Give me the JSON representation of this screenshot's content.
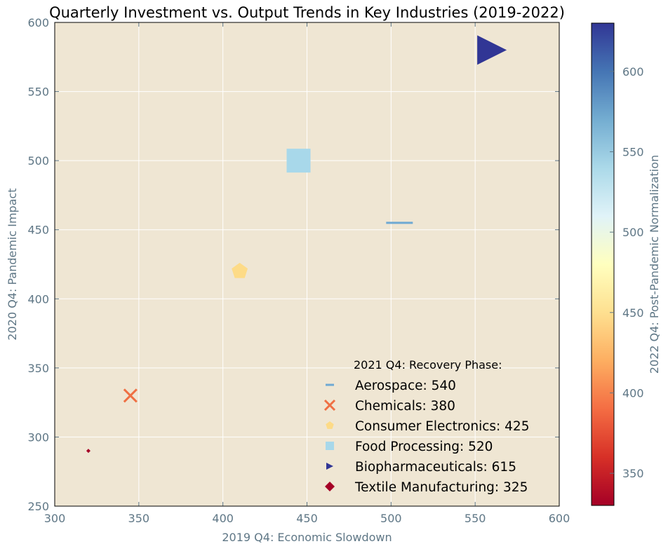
{
  "chart_data": {
    "type": "scatter",
    "title": "Quarterly Investment vs. Output Trends in Key Industries (2019-2022)",
    "xlabel": "2019 Q4: Economic Slowdown",
    "ylabel": "2020 Q4: Pandemic Impact",
    "colorbar_label": "2022 Q4: Post-Pandemic Normalization",
    "xlim": [
      300,
      600
    ],
    "ylim": [
      250,
      600
    ],
    "x_ticks": [
      300,
      350,
      400,
      450,
      500,
      550,
      600
    ],
    "y_ticks": [
      250,
      300,
      350,
      400,
      450,
      500,
      550,
      600
    ],
    "colorbar_range": [
      330,
      630
    ],
    "colorbar_ticks": [
      350,
      400,
      450,
      500,
      550,
      600
    ],
    "colormap": "RdYlBu",
    "grid": true,
    "plot_background": "#efe6d3",
    "legend_title": "2021 Q4: Recovery Phase:",
    "legend_position": "lower-right",
    "series": [
      {
        "name": "Aerospace",
        "label": "Aerospace: 540",
        "x": 505,
        "y": 455,
        "size_value": 540,
        "color_value": 560,
        "marker": "hline",
        "color": "#6fa9d3"
      },
      {
        "name": "Chemicals",
        "label": "Chemicals: 380",
        "x": 345,
        "y": 330,
        "size_value": 380,
        "color_value": 410,
        "marker": "x",
        "color": "#ef6f43"
      },
      {
        "name": "Consumer Electronics",
        "label": "Consumer Electronics: 425",
        "x": 410,
        "y": 420,
        "size_value": 425,
        "color_value": 460,
        "marker": "pentagon",
        "color": "#fddb87"
      },
      {
        "name": "Food Processing",
        "label": "Food Processing: 520",
        "x": 445,
        "y": 500,
        "size_value": 520,
        "color_value": 545,
        "marker": "square",
        "color": "#a8d8ea"
      },
      {
        "name": "Biopharmaceuticals",
        "label": "Biopharmaceuticals: 615",
        "x": 560,
        "y": 580,
        "size_value": 615,
        "color_value": 630,
        "marker": "triangle-right",
        "color": "#313695"
      },
      {
        "name": "Textile Manufacturing",
        "label": "Textile Manufacturing: 325",
        "x": 320,
        "y": 290,
        "size_value": 325,
        "color_value": 330,
        "marker": "diamond",
        "color": "#a50026"
      }
    ]
  }
}
